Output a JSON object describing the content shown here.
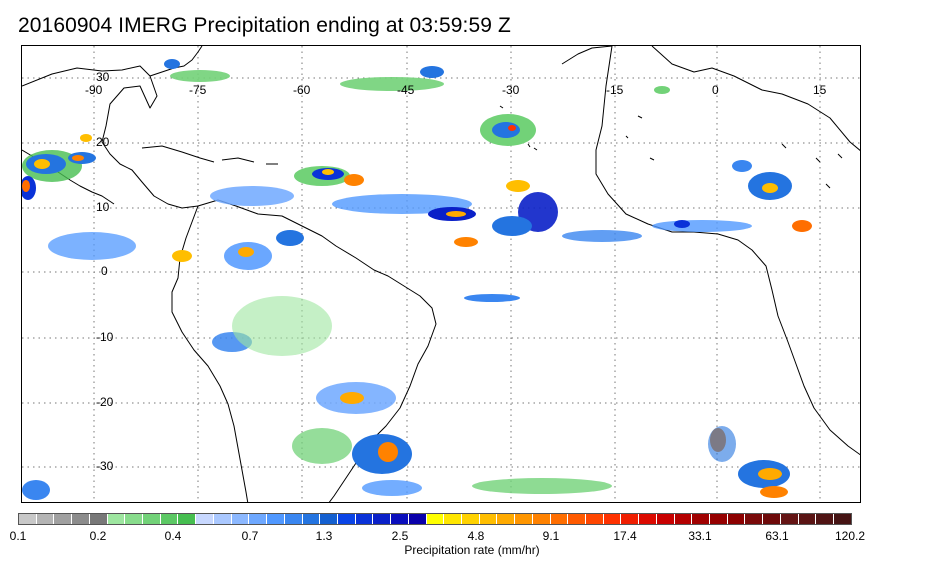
{
  "title": "20160904 IMERG Precipitation ending at 03:59:59 Z",
  "map": {
    "lon_labels": [
      "-90",
      "-75",
      "-60",
      "-45",
      "-30",
      "-15",
      "0",
      "15"
    ],
    "lat_labels": [
      "30",
      "20",
      "10",
      "0",
      "-10",
      "-20",
      "-30"
    ]
  },
  "colorbar": {
    "title": "Precipitation rate (mm/hr)",
    "labels": [
      "0.1",
      "0.2",
      "0.4",
      "0.7",
      "1.3",
      "2.5",
      "4.8",
      "9.1",
      "17.4",
      "33.1",
      "63.1",
      "120.2"
    ],
    "colors": [
      "#c8c8c8",
      "#b4b4b4",
      "#a0a0a0",
      "#8c8c8c",
      "#787878",
      "#9ee6a0",
      "#88dc8c",
      "#72d278",
      "#5cc864",
      "#46be50",
      "#c8d8ff",
      "#aac8ff",
      "#8cb8ff",
      "#6ea8ff",
      "#5098ff",
      "#3a86f0",
      "#2474e0",
      "#1460d0",
      "#0a44e6",
      "#0a32d8",
      "#0a20c8",
      "#0a0ebc",
      "#0a00aa",
      "#ffff00",
      "#ffe600",
      "#ffd200",
      "#ffbe00",
      "#ffaa00",
      "#ff9600",
      "#ff8200",
      "#ff6e00",
      "#ff5a00",
      "#ff4600",
      "#ff3200",
      "#f01e00",
      "#dc0a00",
      "#c80000",
      "#b40000",
      "#a00000",
      "#960000",
      "#8c0000",
      "#7a0a0a",
      "#6e0a0a",
      "#641414",
      "#5a1414",
      "#501414",
      "#461414"
    ]
  }
}
